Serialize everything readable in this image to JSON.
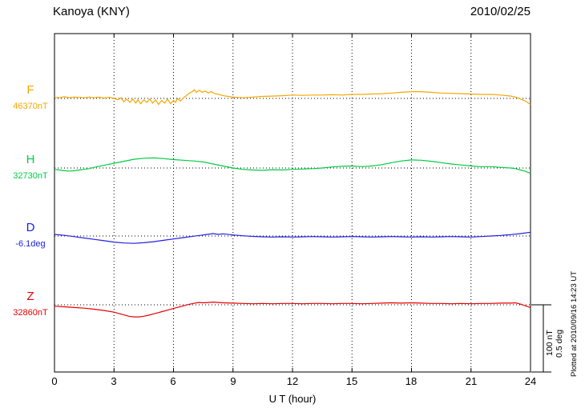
{
  "chart_data": {
    "type": "line",
    "title": "Kanoya (KNY)",
    "observatory_code": "KNY",
    "date": "2010/02/25",
    "xlabel": "U T (hour)",
    "x_range": [
      0,
      24
    ],
    "x_ticks": [
      0,
      3,
      6,
      9,
      12,
      15,
      18,
      21,
      24
    ],
    "grid": "vertical dotted lines every 3 hours; dotted horizontal baseline per component",
    "legend_position": "left of each trace",
    "scale": {
      "nT_per_bar": 100,
      "deg_per_bar": 0.5
    },
    "annotations": {
      "plotted_at": "Plotted at 2010/09/16 14:23 UT",
      "scale_nT": "100 nT",
      "scale_deg": "0.5 deg"
    },
    "series": [
      {
        "name": "F",
        "unit": "nT",
        "baseline": 46370,
        "baseline_label": "46370nT",
        "color": "#F5A700",
        "points": [
          [
            0,
            2
          ],
          [
            0.25,
            1
          ],
          [
            0.5,
            2.5
          ],
          [
            0.75,
            1
          ],
          [
            1,
            2
          ],
          [
            1.25,
            1.5
          ],
          [
            1.5,
            1
          ],
          [
            1.75,
            2
          ],
          [
            2,
            1
          ],
          [
            2.25,
            2
          ],
          [
            2.5,
            0.5
          ],
          [
            2.75,
            1.5
          ],
          [
            3,
            0
          ],
          [
            3.2,
            -2
          ],
          [
            3.35,
            1
          ],
          [
            3.5,
            -5
          ],
          [
            3.65,
            -1
          ],
          [
            3.8,
            -6
          ],
          [
            3.95,
            -1
          ],
          [
            4.1,
            -7
          ],
          [
            4.2,
            -2
          ],
          [
            4.35,
            -8
          ],
          [
            4.5,
            -2
          ],
          [
            4.65,
            -6
          ],
          [
            4.8,
            -1
          ],
          [
            4.95,
            -7
          ],
          [
            5.1,
            -2
          ],
          [
            5.25,
            -9
          ],
          [
            5.4,
            -3
          ],
          [
            5.55,
            -7
          ],
          [
            5.7,
            -1
          ],
          [
            5.85,
            -8
          ],
          [
            6,
            -3
          ],
          [
            6.1,
            -6
          ],
          [
            6.2,
            0
          ],
          [
            6.35,
            -4
          ],
          [
            6.5,
            1
          ],
          [
            6.65,
            4
          ],
          [
            6.8,
            8
          ],
          [
            6.95,
            10
          ],
          [
            7.05,
            13
          ],
          [
            7.15,
            9
          ],
          [
            7.3,
            12
          ],
          [
            7.45,
            9
          ],
          [
            7.6,
            11
          ],
          [
            7.75,
            8
          ],
          [
            7.9,
            10
          ],
          [
            8.1,
            7
          ],
          [
            8.3,
            6
          ],
          [
            8.5,
            4
          ],
          [
            8.75,
            3
          ],
          [
            9,
            2
          ],
          [
            9.25,
            1.5
          ],
          [
            9.5,
            1
          ],
          [
            10,
            2
          ],
          [
            10.5,
            3
          ],
          [
            11,
            3.5
          ],
          [
            11.5,
            4
          ],
          [
            12,
            5
          ],
          [
            12.5,
            4.5
          ],
          [
            13,
            5
          ],
          [
            13.5,
            5
          ],
          [
            14,
            5.5
          ],
          [
            14.5,
            5
          ],
          [
            15,
            6
          ],
          [
            15.5,
            6
          ],
          [
            16,
            6.5
          ],
          [
            16.5,
            7
          ],
          [
            17,
            8
          ],
          [
            17.5,
            9
          ],
          [
            18,
            10
          ],
          [
            18.5,
            10
          ],
          [
            19,
            9
          ],
          [
            19.5,
            8
          ],
          [
            20,
            7.5
          ],
          [
            20.5,
            7
          ],
          [
            21,
            6.5
          ],
          [
            21.5,
            6
          ],
          [
            22,
            6
          ],
          [
            22.5,
            5
          ],
          [
            23,
            3.5
          ],
          [
            23.25,
            2
          ],
          [
            23.5,
            -1
          ],
          [
            23.75,
            -4
          ],
          [
            24,
            -9
          ]
        ]
      },
      {
        "name": "H",
        "unit": "nT",
        "baseline": 32730,
        "baseline_label": "32730nT",
        "color": "#00CC44",
        "points": [
          [
            0,
            -2
          ],
          [
            0.25,
            -3
          ],
          [
            0.5,
            -4
          ],
          [
            0.75,
            -4.5
          ],
          [
            1,
            -4
          ],
          [
            1.25,
            -3
          ],
          [
            1.5,
            -2
          ],
          [
            1.75,
            -1
          ],
          [
            2,
            1
          ],
          [
            2.5,
            4
          ],
          [
            3,
            7
          ],
          [
            3.5,
            10
          ],
          [
            4,
            13
          ],
          [
            4.5,
            14.5
          ],
          [
            5,
            15
          ],
          [
            5.5,
            14
          ],
          [
            6,
            12.5
          ],
          [
            6.5,
            11.5
          ],
          [
            7,
            10.5
          ],
          [
            7.5,
            9
          ],
          [
            8,
            6
          ],
          [
            8.5,
            3
          ],
          [
            9,
            0
          ],
          [
            9.5,
            -2
          ],
          [
            10,
            -3
          ],
          [
            10.5,
            -3.5
          ],
          [
            11,
            -2.5
          ],
          [
            11.5,
            -3
          ],
          [
            12,
            -2
          ],
          [
            12.5,
            -1.5
          ],
          [
            13,
            -1
          ],
          [
            13.5,
            0
          ],
          [
            14,
            1.5
          ],
          [
            14.5,
            2.5
          ],
          [
            15,
            3
          ],
          [
            15.5,
            2
          ],
          [
            16,
            3
          ],
          [
            16.5,
            5
          ],
          [
            17,
            8
          ],
          [
            17.5,
            10.5
          ],
          [
            18,
            12
          ],
          [
            18.5,
            11.5
          ],
          [
            19,
            10
          ],
          [
            19.5,
            8
          ],
          [
            20,
            6
          ],
          [
            20.5,
            4.5
          ],
          [
            21,
            3
          ],
          [
            21.5,
            2
          ],
          [
            22,
            2
          ],
          [
            22.5,
            1
          ],
          [
            23,
            0
          ],
          [
            23.25,
            -1
          ],
          [
            23.5,
            -3
          ],
          [
            23.75,
            -5
          ],
          [
            24,
            -8
          ]
        ]
      },
      {
        "name": "D",
        "unit": "deg",
        "baseline": -6.1,
        "baseline_label": "-6.1deg",
        "color": "#2020E0",
        "points": [
          [
            0,
            0.012
          ],
          [
            0.5,
            0.005
          ],
          [
            1,
            -0.005
          ],
          [
            1.5,
            -0.015
          ],
          [
            2,
            -0.025
          ],
          [
            2.5,
            -0.035
          ],
          [
            3,
            -0.045
          ],
          [
            3.5,
            -0.052
          ],
          [
            4,
            -0.055
          ],
          [
            4.5,
            -0.05
          ],
          [
            5,
            -0.042
          ],
          [
            5.5,
            -0.032
          ],
          [
            6,
            -0.022
          ],
          [
            6.5,
            -0.012
          ],
          [
            7,
            -0.002
          ],
          [
            7.5,
            0.008
          ],
          [
            8,
            0.018
          ],
          [
            8.25,
            0.012
          ],
          [
            8.5,
            0.016
          ],
          [
            9,
            0.008
          ],
          [
            9.5,
            0.002
          ],
          [
            10,
            -0.003
          ],
          [
            10.5,
            -0.006
          ],
          [
            11,
            -0.008
          ],
          [
            11.5,
            -0.006
          ],
          [
            12,
            -0.008
          ],
          [
            12.5,
            -0.006
          ],
          [
            13,
            -0.004
          ],
          [
            13.5,
            -0.006
          ],
          [
            14,
            -0.008
          ],
          [
            14.5,
            -0.006
          ],
          [
            15,
            -0.004
          ],
          [
            15.5,
            -0.006
          ],
          [
            16,
            -0.008
          ],
          [
            16.5,
            -0.006
          ],
          [
            17,
            -0.004
          ],
          [
            17.5,
            -0.006
          ],
          [
            18,
            -0.008
          ],
          [
            18.5,
            -0.006
          ],
          [
            19,
            -0.008
          ],
          [
            19.5,
            -0.006
          ],
          [
            20,
            -0.004
          ],
          [
            20.5,
            -0.006
          ],
          [
            21,
            -0.008
          ],
          [
            21.5,
            -0.004
          ],
          [
            22,
            0
          ],
          [
            22.5,
            0.004
          ],
          [
            23,
            0.01
          ],
          [
            23.5,
            0.018
          ],
          [
            24,
            0.028
          ]
        ]
      },
      {
        "name": "Z",
        "unit": "nT",
        "baseline": 32860,
        "baseline_label": "32860nT",
        "color": "#E80000",
        "points": [
          [
            0,
            -2
          ],
          [
            0.5,
            -3
          ],
          [
            1,
            -4
          ],
          [
            1.5,
            -5
          ],
          [
            2,
            -6.5
          ],
          [
            2.5,
            -8.5
          ],
          [
            3,
            -11
          ],
          [
            3.25,
            -13
          ],
          [
            3.5,
            -15
          ],
          [
            3.75,
            -17
          ],
          [
            4,
            -18
          ],
          [
            4.25,
            -18
          ],
          [
            4.5,
            -17
          ],
          [
            4.75,
            -15.5
          ],
          [
            5,
            -13.5
          ],
          [
            5.25,
            -11.5
          ],
          [
            5.5,
            -9.5
          ],
          [
            5.75,
            -7.5
          ],
          [
            6,
            -5.5
          ],
          [
            6.25,
            -3.5
          ],
          [
            6.5,
            -1.5
          ],
          [
            6.75,
            0.5
          ],
          [
            7,
            2
          ],
          [
            7.25,
            3.5
          ],
          [
            7.5,
            3
          ],
          [
            7.75,
            3.5
          ],
          [
            8,
            4
          ],
          [
            8.25,
            3.5
          ],
          [
            8.5,
            3
          ],
          [
            9,
            2.5
          ],
          [
            9.5,
            2
          ],
          [
            10,
            1.5
          ],
          [
            10.5,
            2
          ],
          [
            11,
            1.5
          ],
          [
            11.5,
            2
          ],
          [
            12,
            2
          ],
          [
            12.5,
            1.5
          ],
          [
            13,
            2
          ],
          [
            13.5,
            2
          ],
          [
            14,
            1.5
          ],
          [
            14.5,
            2
          ],
          [
            15,
            2
          ],
          [
            15.5,
            1.5
          ],
          [
            16,
            2
          ],
          [
            16.5,
            2.5
          ],
          [
            17,
            3
          ],
          [
            17.5,
            2.5
          ],
          [
            18,
            3
          ],
          [
            18.5,
            2.5
          ],
          [
            19,
            2
          ],
          [
            19.5,
            2
          ],
          [
            20,
            1.5
          ],
          [
            20.5,
            2
          ],
          [
            21,
            1.5
          ],
          [
            21.5,
            2
          ],
          [
            22,
            2
          ],
          [
            22.5,
            2.5
          ],
          [
            23,
            2.5
          ],
          [
            23.25,
            3
          ],
          [
            23.5,
            1
          ],
          [
            23.75,
            -1.5
          ],
          [
            24,
            -4
          ]
        ]
      }
    ]
  }
}
